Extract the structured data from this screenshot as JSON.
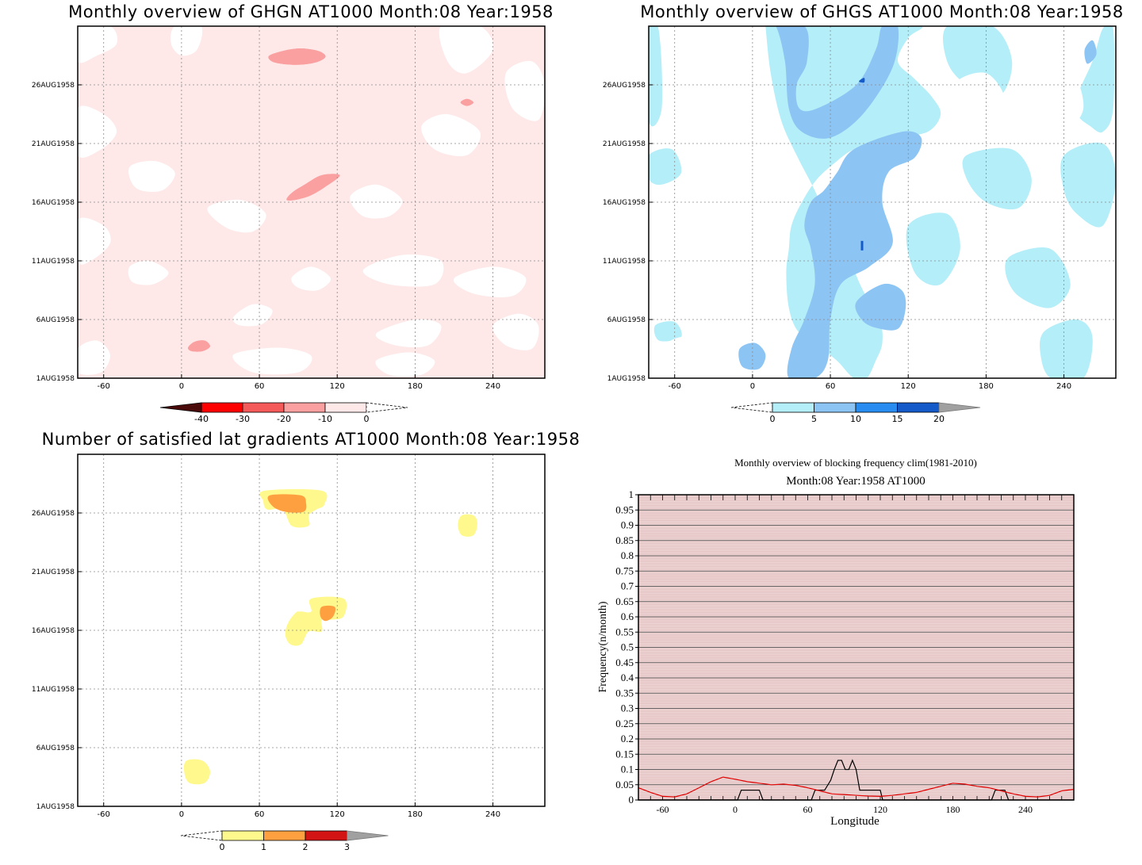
{
  "colors": {
    "ghgn_levels": [
      "#4a0a0a",
      "#ff0000",
      "#f45a5a",
      "#fba0a0",
      "#fee8e8"
    ],
    "ghgs_levels": [
      "#b4eef8",
      "#8cc4f4",
      "#288cf0",
      "#145ac8",
      "#a0a0a0"
    ],
    "lat_levels": [
      "#fff88c",
      "#ffa040",
      "#d21414",
      "#a0a0a0"
    ],
    "freq_bg": "#f5dede",
    "freq_line_obs": "#000000",
    "freq_line_clim": "#e00000"
  },
  "chart_data": [
    {
      "id": "ghgn",
      "type": "heatmap",
      "title": "Monthly overview of GHGN AT1000 Month:08 Year:1958",
      "x_ticks": [
        -60,
        0,
        60,
        120,
        180,
        240
      ],
      "xlim": [
        -80,
        280
      ],
      "y_ticks": [
        "1AUG1958",
        "6AUG1958",
        "11AUG1958",
        "16AUG1958",
        "21AUG1958",
        "26AUG1958"
      ],
      "y_tick_days": [
        1,
        6,
        11,
        16,
        21,
        26
      ],
      "ylim": [
        1,
        31
      ],
      "colorbar_labels": [
        "-40",
        "-30",
        "-20",
        "-10",
        "0"
      ],
      "fill_level_blobs": [
        {
          "level": -10,
          "x": [
            67,
            75,
            90,
            105,
            111,
            103,
            88,
            72
          ],
          "y": [
            28.4,
            28.8,
            29.1,
            28.9,
            28.4,
            27.9,
            27.7,
            27.9
          ]
        },
        {
          "level": -10,
          "x": [
            81,
            85,
            95,
            108,
            122,
            112,
            100,
            88
          ],
          "y": [
            16.2,
            16.8,
            17.5,
            18.3,
            18.3,
            17.4,
            16.6,
            16.2
          ]
        },
        {
          "level": -10,
          "x": [
            5,
            10,
            18,
            22,
            16,
            8
          ],
          "y": [
            3.6,
            4.1,
            4.2,
            3.7,
            3.3,
            3.3
          ]
        },
        {
          "level": -10,
          "x": [
            215,
            220,
            225,
            220
          ],
          "y": [
            24.5,
            24.8,
            24.5,
            24.2
          ]
        }
      ]
    },
    {
      "id": "ghgs",
      "type": "heatmap",
      "title": "Monthly overview of GHGS AT1000 Month:08 Year:1958",
      "x_ticks": [
        -60,
        0,
        60,
        120,
        180,
        240
      ],
      "xlim": [
        -80,
        280
      ],
      "y_ticks": [
        "1AUG1958",
        "6AUG1958",
        "11AUG1958",
        "16AUG1958",
        "21AUG1958",
        "26AUG1958"
      ],
      "y_tick_days": [
        1,
        6,
        11,
        16,
        21,
        26
      ],
      "ylim": [
        1,
        31
      ],
      "colorbar_labels": [
        "0",
        "5",
        "10",
        "15",
        "20"
      ],
      "fill_level_blobs": [
        {
          "level": 5,
          "x": [
            10,
            40,
            95,
            130,
            120,
            112,
            125,
            138,
            145,
            135,
            110,
            95,
            78,
            65,
            50,
            38,
            30,
            28,
            26,
            28,
            35,
            50,
            65,
            78,
            88,
            95,
            100,
            98,
            85,
            75,
            60,
            48,
            34,
            22,
            14,
            10
          ],
          "y": [
            31,
            31,
            31,
            31,
            30,
            28,
            26.5,
            25,
            23.5,
            22,
            21.5,
            21,
            20.5,
            19.5,
            18,
            16,
            14,
            12,
            10,
            7,
            5,
            3.8,
            2.5,
            1,
            1,
            2.5,
            4,
            6,
            8.5,
            11,
            14,
            17,
            20,
            23,
            27,
            31
          ]
        },
        {
          "level": 5,
          "x": [
            250,
            262,
            270,
            278,
            278,
            270,
            260,
            250
          ],
          "y": [
            25,
            28,
            30.8,
            30.8,
            24,
            22,
            22.5,
            23.5
          ]
        },
        {
          "level": 5,
          "x": [
            -80,
            -72,
            -70,
            -80
          ],
          "y": [
            31,
            30.5,
            24,
            23
          ]
        }
      ]
    },
    {
      "id": "latgrad",
      "type": "heatmap",
      "title": "Number of satisfied lat gradients AT1000 Month:08 Year:1958",
      "x_ticks": [
        -60,
        0,
        60,
        120,
        180,
        240
      ],
      "xlim": [
        -80,
        280
      ],
      "y_ticks": [
        "1AUG1958",
        "6AUG1958",
        "11AUG1958",
        "16AUG1958",
        "21AUG1958",
        "26AUG1958"
      ],
      "y_tick_days": [
        1,
        6,
        11,
        16,
        21,
        26
      ],
      "ylim": [
        1,
        31
      ],
      "colorbar_labels": [
        "0",
        "1",
        "2",
        "3"
      ],
      "fill_level_blobs": [
        {
          "level": 0,
          "x": [
            64,
            108,
            110,
            104,
            98,
            98,
            85,
            78,
            66,
            63
          ],
          "y": [
            27.9,
            27.9,
            26.7,
            26.3,
            25.8,
            24.9,
            24.9,
            26.3,
            26.3,
            27.0
          ]
        },
        {
          "level": 1,
          "x": [
            68,
            92,
            96,
            94,
            80,
            70
          ],
          "y": [
            27.5,
            27.5,
            26.8,
            26.1,
            26.1,
            26.6
          ]
        },
        {
          "level": 0,
          "x": [
            100,
            125,
            125,
            115,
            108,
            108,
            98,
            92,
            84,
            80,
            82,
            88,
            92,
            100
          ],
          "y": [
            18.7,
            18.7,
            17.2,
            16.9,
            16.9,
            15.9,
            15.9,
            14.8,
            14.8,
            15.6,
            16.6,
            17.5,
            17.6,
            17.6
          ]
        },
        {
          "level": 1,
          "x": [
            108,
            118,
            117,
            111,
            107
          ],
          "y": [
            18.0,
            18.0,
            17.2,
            16.8,
            17.2
          ]
        },
        {
          "level": 0,
          "x": [
            216,
            225,
            228,
            225,
            216,
            213
          ],
          "y": [
            25.8,
            25.8,
            25.1,
            24.1,
            24.1,
            25.0
          ]
        },
        {
          "level": 0,
          "x": [
            4,
            16,
            22,
            18,
            6,
            2
          ],
          "y": [
            4.9,
            4.9,
            4.0,
            3.0,
            3.0,
            4.0
          ]
        }
      ]
    },
    {
      "id": "blockfreq",
      "type": "line",
      "title": "Monthly overview of blocking frequency clim(1981-2010)",
      "subtitle": "Month:08 Year:1958  AT1000",
      "xlabel": "Longitude",
      "ylabel": "Frequency(n/month)",
      "xlim": [
        -80,
        280
      ],
      "ylim": [
        0,
        1
      ],
      "x_ticks": [
        -60,
        0,
        60,
        120,
        180,
        240
      ],
      "y_ticks": [
        "0",
        "0.05",
        "0.1",
        "0.15",
        "0.2",
        "0.25",
        "0.3",
        "0.35",
        "0.4",
        "0.45",
        "0.5",
        "0.55",
        "0.6",
        "0.65",
        "0.7",
        "0.75",
        "0.8",
        "0.85",
        "0.9",
        "0.95",
        "1"
      ],
      "series": [
        {
          "color": "#000000",
          "x": [
            -80,
            2,
            5,
            20,
            23,
            63,
            66,
            74,
            79,
            82,
            85,
            88,
            91,
            94,
            97,
            100,
            103,
            106,
            109,
            120,
            122,
            212,
            215,
            223,
            226,
            280
          ],
          "y": [
            0,
            0,
            0.032,
            0.032,
            0,
            0,
            0.032,
            0.032,
            0.065,
            0.1,
            0.13,
            0.13,
            0.1,
            0.1,
            0.13,
            0.1,
            0.032,
            0.032,
            0.032,
            0.032,
            0,
            0,
            0.032,
            0.032,
            0,
            0
          ]
        },
        {
          "color": "#e00000",
          "x": [
            -80,
            -70,
            -60,
            -50,
            -40,
            -30,
            -20,
            -10,
            0,
            10,
            20,
            30,
            40,
            50,
            60,
            70,
            80,
            90,
            100,
            110,
            120,
            130,
            140,
            150,
            160,
            170,
            180,
            190,
            200,
            210,
            220,
            230,
            240,
            250,
            260,
            270,
            280
          ],
          "y": [
            0.04,
            0.025,
            0.012,
            0.01,
            0.02,
            0.04,
            0.06,
            0.075,
            0.068,
            0.06,
            0.055,
            0.05,
            0.052,
            0.048,
            0.04,
            0.03,
            0.02,
            0.018,
            0.015,
            0.013,
            0.012,
            0.015,
            0.02,
            0.025,
            0.035,
            0.045,
            0.055,
            0.052,
            0.045,
            0.04,
            0.03,
            0.02,
            0.012,
            0.01,
            0.015,
            0.03,
            0.035
          ]
        }
      ]
    }
  ]
}
